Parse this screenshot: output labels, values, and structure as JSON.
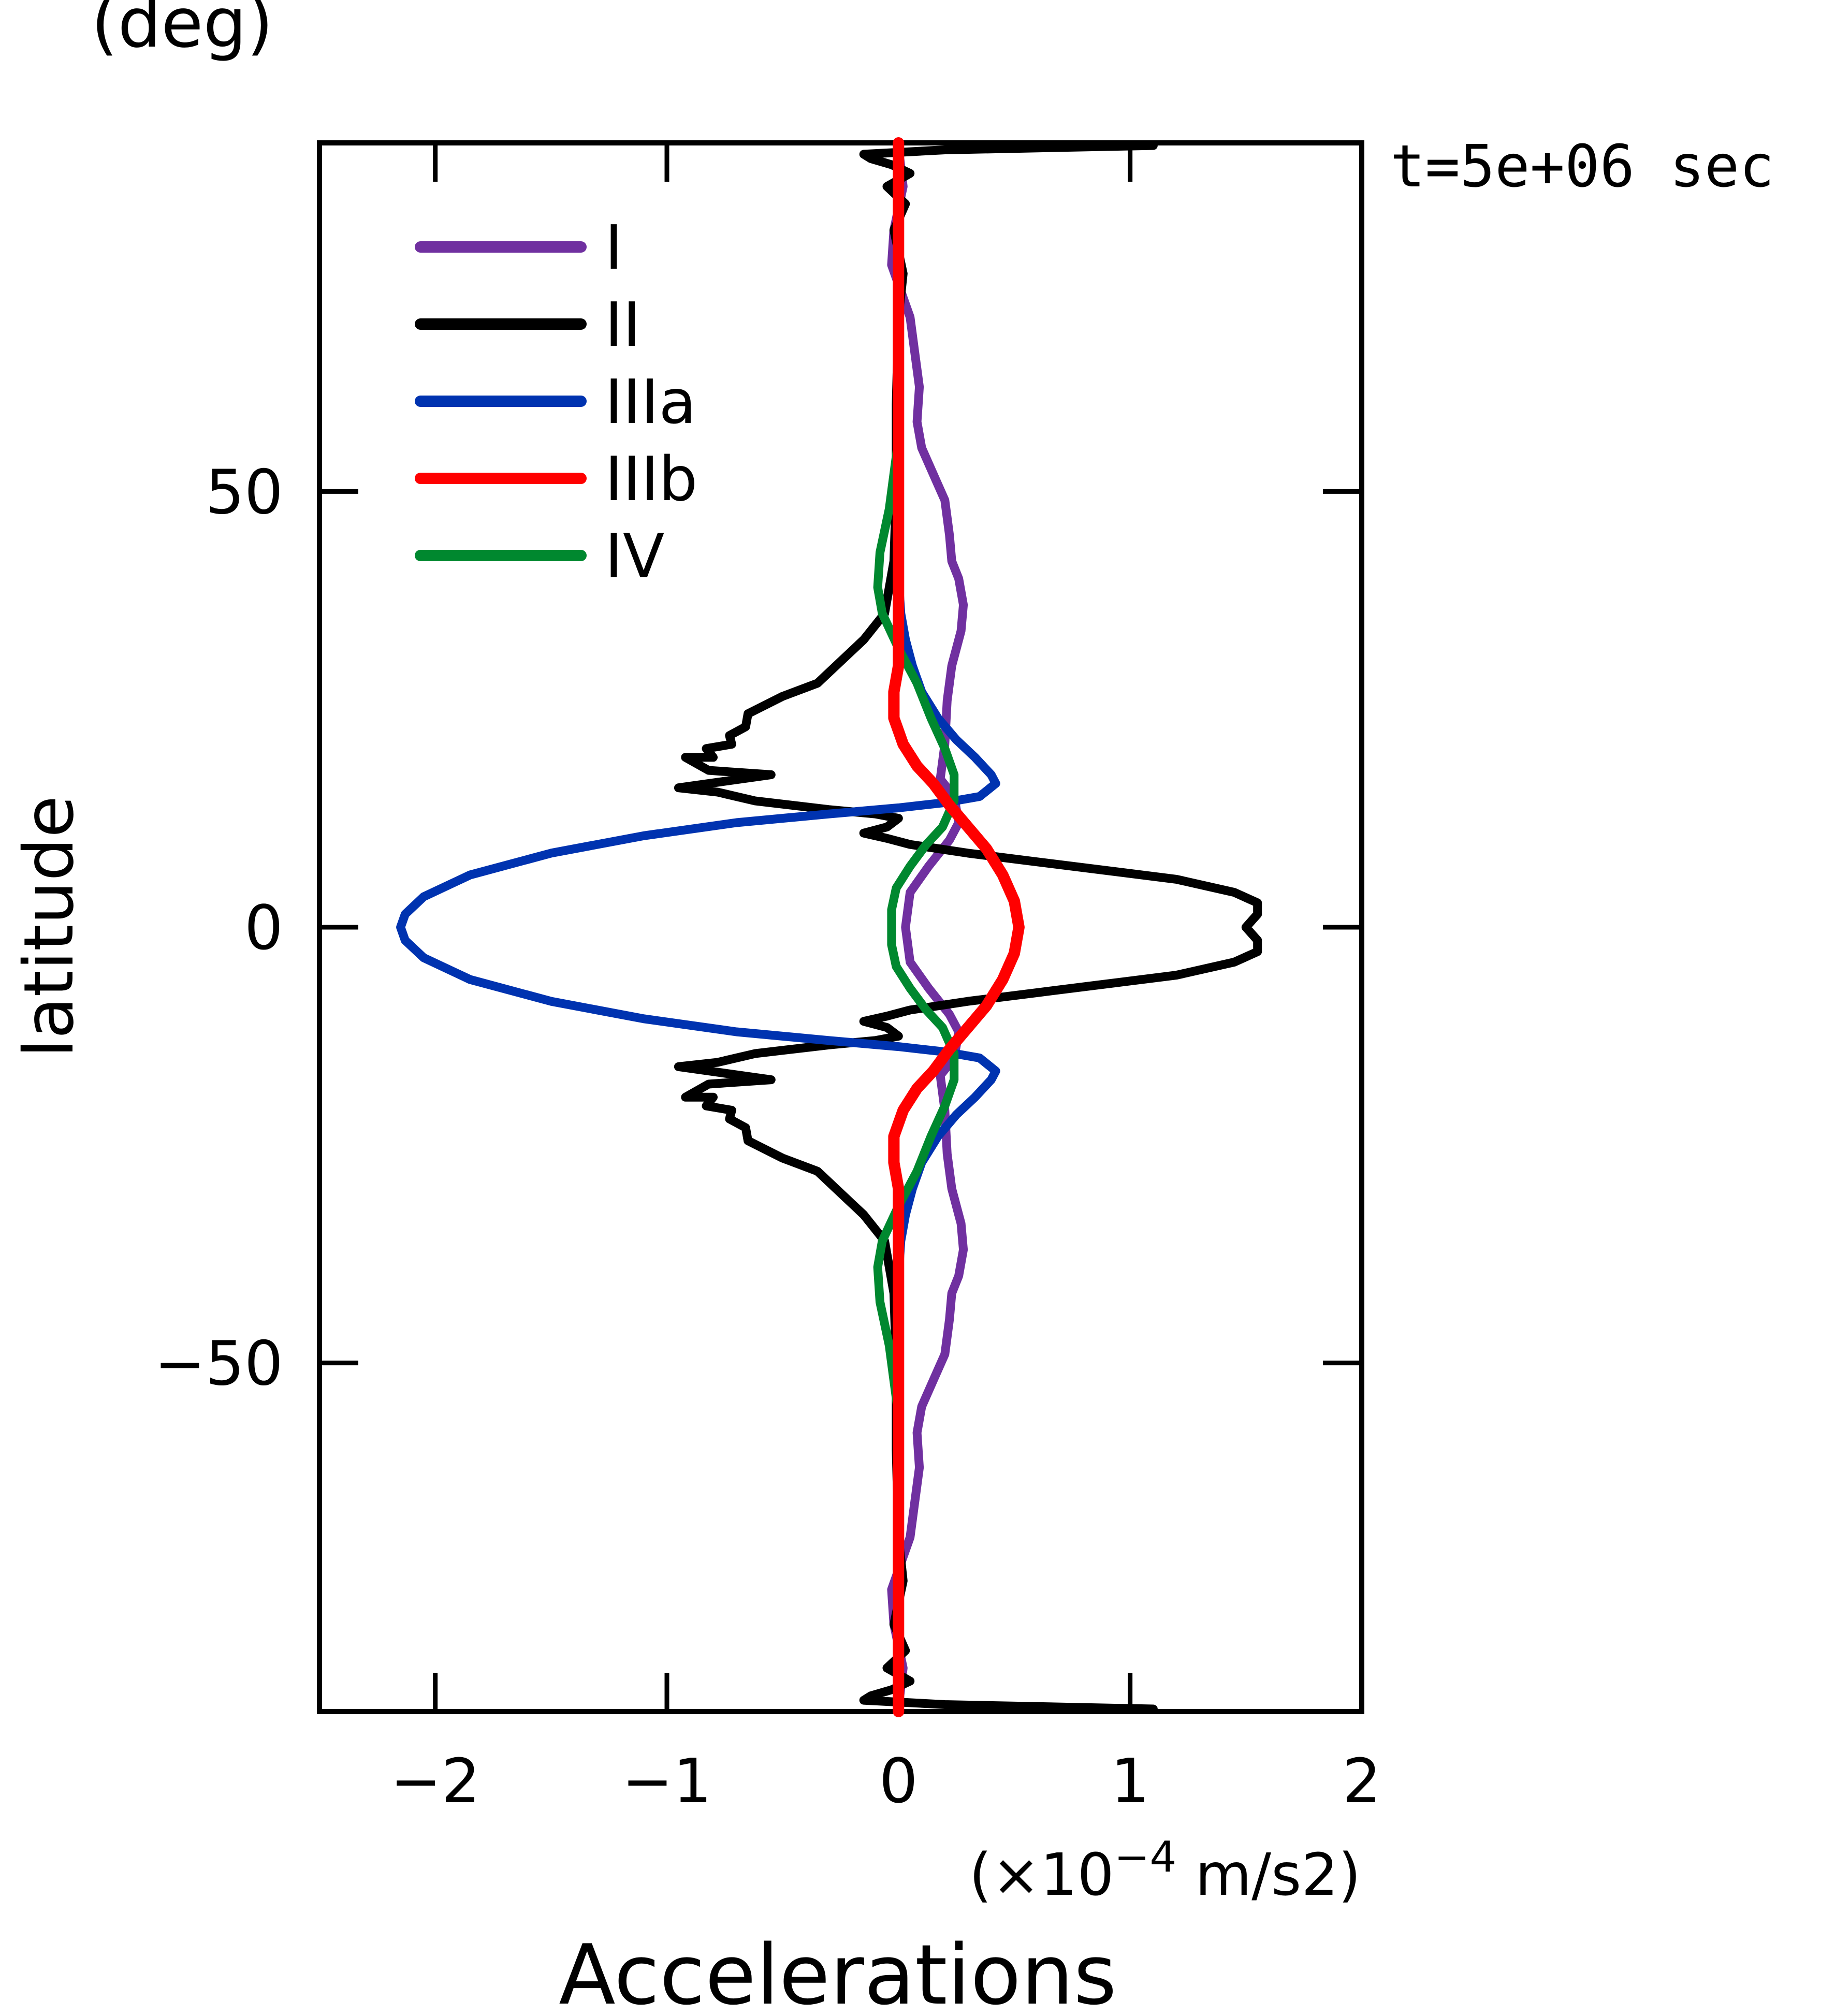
{
  "chart_data": {
    "type": "line",
    "orientation": "horizontal-profile",
    "title": "",
    "timestamp": "t=5e+06 sec",
    "xlabel": "Accelerations",
    "x_units": "(×10⁻⁴ m/s2)",
    "x_units_parts": {
      "prefix": "(×10",
      "exponent": "−4",
      "suffix": " m/s2)"
    },
    "ylabel": "latitude",
    "y_units": "(deg)",
    "xlim": [
      -2.5,
      2
    ],
    "ylim": [
      -90,
      90
    ],
    "grid": false,
    "legend_position": "top-left",
    "x_ticks": [
      {
        "value": -2,
        "label": "−2"
      },
      {
        "value": -1,
        "label": "−1"
      },
      {
        "value": 0,
        "label": "0"
      },
      {
        "value": 1,
        "label": "1"
      },
      {
        "value": 2,
        "label": "2"
      }
    ],
    "y_ticks": [
      {
        "value": -50,
        "label": "−50"
      },
      {
        "value": 0,
        "label": "0"
      },
      {
        "value": 50,
        "label": "50"
      }
    ],
    "series": [
      {
        "name": "I",
        "color": "#7030a0",
        "points": [
          [
            0.0,
            89.5
          ],
          [
            0.02,
            85
          ],
          [
            -0.02,
            80
          ],
          [
            -0.03,
            76
          ],
          [
            0.01,
            73
          ],
          [
            0.05,
            70
          ],
          [
            0.07,
            66
          ],
          [
            0.09,
            62
          ],
          [
            0.08,
            58
          ],
          [
            0.1,
            55
          ],
          [
            0.15,
            52
          ],
          [
            0.2,
            49
          ],
          [
            0.22,
            45
          ],
          [
            0.23,
            42
          ],
          [
            0.26,
            40
          ],
          [
            0.28,
            37
          ],
          [
            0.27,
            34
          ],
          [
            0.23,
            30
          ],
          [
            0.21,
            26
          ],
          [
            0.2,
            21
          ],
          [
            0.18,
            17
          ],
          [
            0.24,
            15
          ],
          [
            0.26,
            12
          ],
          [
            0.22,
            10
          ],
          [
            0.13,
            7
          ],
          [
            0.05,
            4
          ],
          [
            0.03,
            0
          ],
          [
            0.05,
            -4
          ],
          [
            0.13,
            -7
          ],
          [
            0.22,
            -10
          ],
          [
            0.26,
            -12
          ],
          [
            0.24,
            -15
          ],
          [
            0.18,
            -17
          ],
          [
            0.2,
            -21
          ],
          [
            0.21,
            -26
          ],
          [
            0.23,
            -30
          ],
          [
            0.27,
            -34
          ],
          [
            0.28,
            -37
          ],
          [
            0.26,
            -40
          ],
          [
            0.23,
            -42
          ],
          [
            0.22,
            -45
          ],
          [
            0.2,
            -49
          ],
          [
            0.15,
            -52
          ],
          [
            0.1,
            -55
          ],
          [
            0.08,
            -58
          ],
          [
            0.09,
            -62
          ],
          [
            0.07,
            -66
          ],
          [
            0.05,
            -70
          ],
          [
            0.01,
            -73
          ],
          [
            -0.03,
            -76
          ],
          [
            -0.02,
            -80
          ],
          [
            0.02,
            -85
          ],
          [
            0.0,
            -89.5
          ]
        ]
      },
      {
        "name": "II",
        "color": "#000000",
        "points": [
          [
            1.1,
            89.7
          ],
          [
            0.2,
            89.2
          ],
          [
            -0.15,
            88.7
          ],
          [
            -0.12,
            88.2
          ],
          [
            -0.03,
            87.5
          ],
          [
            0.05,
            86.5
          ],
          [
            -0.05,
            85
          ],
          [
            0.03,
            83
          ],
          [
            -0.02,
            80
          ],
          [
            0.02,
            75
          ],
          [
            0.0,
            70
          ],
          [
            -0.01,
            60
          ],
          [
            -0.01,
            50
          ],
          [
            -0.02,
            42
          ],
          [
            -0.06,
            36
          ],
          [
            -0.15,
            33
          ],
          [
            -0.25,
            30.5
          ],
          [
            -0.35,
            28
          ],
          [
            -0.5,
            26.5
          ],
          [
            -0.65,
            24.5
          ],
          [
            -0.66,
            23
          ],
          [
            -0.73,
            22
          ],
          [
            -0.72,
            21
          ],
          [
            -0.83,
            20.5
          ],
          [
            -0.8,
            19.5
          ],
          [
            -0.92,
            19.5
          ],
          [
            -0.82,
            18
          ],
          [
            -0.55,
            17.5
          ],
          [
            -0.95,
            16
          ],
          [
            -0.78,
            15.5
          ],
          [
            -0.62,
            14.5
          ],
          [
            -0.3,
            13.5
          ],
          [
            -0.1,
            13
          ],
          [
            0.0,
            12.5
          ],
          [
            -0.05,
            11.5
          ],
          [
            -0.15,
            10.8
          ],
          [
            -0.05,
            10.2
          ],
          [
            0.05,
            9.5
          ],
          [
            0.3,
            8.5
          ],
          [
            0.6,
            7.5
          ],
          [
            0.9,
            6.5
          ],
          [
            1.2,
            5.5
          ],
          [
            1.45,
            4.0
          ],
          [
            1.55,
            2.8
          ],
          [
            1.55,
            1.5
          ],
          [
            1.5,
            0
          ],
          [
            1.55,
            -1.5
          ],
          [
            1.55,
            -2.8
          ],
          [
            1.45,
            -4.0
          ],
          [
            1.2,
            -5.5
          ],
          [
            0.9,
            -6.5
          ],
          [
            0.6,
            -7.5
          ],
          [
            0.3,
            -8.5
          ],
          [
            0.05,
            -9.5
          ],
          [
            -0.05,
            -10.2
          ],
          [
            -0.15,
            -10.8
          ],
          [
            -0.05,
            -11.5
          ],
          [
            0.0,
            -12.5
          ],
          [
            -0.1,
            -13
          ],
          [
            -0.3,
            -13.5
          ],
          [
            -0.62,
            -14.5
          ],
          [
            -0.78,
            -15.5
          ],
          [
            -0.95,
            -16
          ],
          [
            -0.55,
            -17.5
          ],
          [
            -0.82,
            -18
          ],
          [
            -0.92,
            -19.5
          ],
          [
            -0.8,
            -19.5
          ],
          [
            -0.83,
            -20.5
          ],
          [
            -0.72,
            -21
          ],
          [
            -0.73,
            -22
          ],
          [
            -0.66,
            -23
          ],
          [
            -0.65,
            -24.5
          ],
          [
            -0.5,
            -26.5
          ],
          [
            -0.35,
            -28
          ],
          [
            -0.25,
            -30.5
          ],
          [
            -0.15,
            -33
          ],
          [
            -0.06,
            -36
          ],
          [
            -0.02,
            -42
          ],
          [
            -0.01,
            -50
          ],
          [
            -0.01,
            -60
          ],
          [
            0.0,
            -70
          ],
          [
            0.02,
            -75
          ],
          [
            -0.02,
            -80
          ],
          [
            0.03,
            -83
          ],
          [
            -0.05,
            -85
          ],
          [
            0.05,
            -86.5
          ],
          [
            -0.03,
            -87.5
          ],
          [
            -0.12,
            -88.2
          ],
          [
            -0.15,
            -88.7
          ],
          [
            0.2,
            -89.2
          ],
          [
            1.1,
            -89.7
          ]
        ]
      },
      {
        "name": "IIIa",
        "color": "#0033b0",
        "points": [
          [
            0.0,
            90
          ],
          [
            0.0,
            40
          ],
          [
            0.01,
            36
          ],
          [
            0.03,
            33
          ],
          [
            0.06,
            30
          ],
          [
            0.1,
            27
          ],
          [
            0.17,
            24
          ],
          [
            0.25,
            21.5
          ],
          [
            0.33,
            19.5
          ],
          [
            0.4,
            17.5
          ],
          [
            0.42,
            16.5
          ],
          [
            0.35,
            15
          ],
          [
            0.2,
            14.3
          ],
          [
            0.0,
            13.7
          ],
          [
            -0.3,
            13
          ],
          [
            -0.7,
            12
          ],
          [
            -1.1,
            10.5
          ],
          [
            -1.5,
            8.5
          ],
          [
            -1.85,
            6
          ],
          [
            -2.05,
            3.5
          ],
          [
            -2.13,
            1.5
          ],
          [
            -2.15,
            0
          ],
          [
            -2.13,
            -1.5
          ],
          [
            -2.05,
            -3.5
          ],
          [
            -1.85,
            -6
          ],
          [
            -1.5,
            -8.5
          ],
          [
            -1.1,
            -10.5
          ],
          [
            -0.7,
            -12
          ],
          [
            -0.3,
            -13
          ],
          [
            0.0,
            -13.7
          ],
          [
            0.2,
            -14.3
          ],
          [
            0.35,
            -15
          ],
          [
            0.42,
            -16.5
          ],
          [
            0.4,
            -17.5
          ],
          [
            0.33,
            -19.5
          ],
          [
            0.25,
            -21.5
          ],
          [
            0.17,
            -24
          ],
          [
            0.1,
            -27
          ],
          [
            0.06,
            -30
          ],
          [
            0.03,
            -33
          ],
          [
            0.01,
            -36
          ],
          [
            0.0,
            -40
          ],
          [
            0.0,
            -90
          ]
        ]
      },
      {
        "name": "IIIb",
        "color": "#ff0000",
        "points": [
          [
            0.0,
            90
          ],
          [
            0.0,
            40
          ],
          [
            0.0,
            30
          ],
          [
            -0.02,
            27
          ],
          [
            -0.02,
            24
          ],
          [
            0.02,
            21
          ],
          [
            0.08,
            18.5
          ],
          [
            0.15,
            16.5
          ],
          [
            0.22,
            14
          ],
          [
            0.3,
            11.5
          ],
          [
            0.38,
            9
          ],
          [
            0.45,
            6
          ],
          [
            0.5,
            3
          ],
          [
            0.52,
            0
          ],
          [
            0.5,
            -3
          ],
          [
            0.45,
            -6
          ],
          [
            0.38,
            -9
          ],
          [
            0.3,
            -11.5
          ],
          [
            0.22,
            -14
          ],
          [
            0.15,
            -16.5
          ],
          [
            0.08,
            -18.5
          ],
          [
            0.02,
            -21
          ],
          [
            -0.02,
            -24
          ],
          [
            -0.02,
            -27
          ],
          [
            0.0,
            -30
          ],
          [
            0.0,
            -40
          ],
          [
            0.0,
            -90
          ]
        ]
      },
      {
        "name": "IV",
        "color": "#00882f",
        "points": [
          [
            0.0,
            56
          ],
          [
            -0.04,
            48
          ],
          [
            -0.08,
            43
          ],
          [
            -0.09,
            39
          ],
          [
            -0.07,
            36
          ],
          [
            0.0,
            32
          ],
          [
            0.08,
            28
          ],
          [
            0.14,
            24
          ],
          [
            0.2,
            20.5
          ],
          [
            0.24,
            17.5
          ],
          [
            0.24,
            14.5
          ],
          [
            0.19,
            11.5
          ],
          [
            0.12,
            9.5
          ],
          [
            0.05,
            7
          ],
          [
            -0.01,
            4.5
          ],
          [
            -0.03,
            2
          ],
          [
            -0.03,
            0
          ],
          [
            -0.03,
            -2
          ],
          [
            -0.01,
            -4.5
          ],
          [
            0.05,
            -7
          ],
          [
            0.12,
            -9.5
          ],
          [
            0.19,
            -11.5
          ],
          [
            0.24,
            -14.5
          ],
          [
            0.24,
            -17.5
          ],
          [
            0.2,
            -20.5
          ],
          [
            0.14,
            -24
          ],
          [
            0.08,
            -28
          ],
          [
            0.0,
            -32
          ],
          [
            -0.07,
            -36
          ],
          [
            -0.09,
            -39
          ],
          [
            -0.08,
            -43
          ],
          [
            -0.04,
            -48
          ],
          [
            0.0,
            -56
          ]
        ]
      }
    ]
  }
}
